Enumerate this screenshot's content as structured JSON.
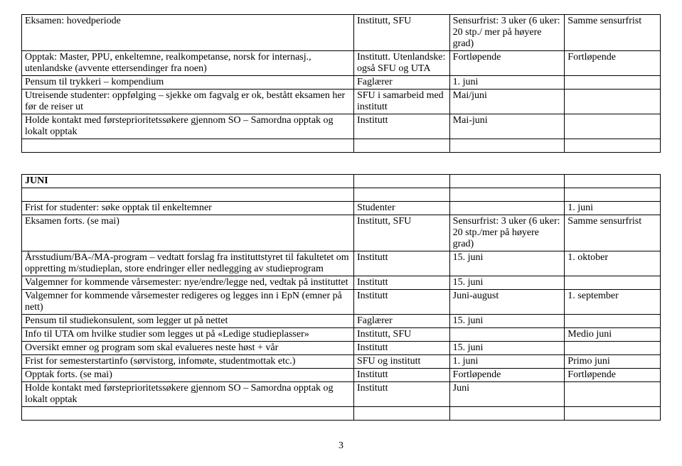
{
  "tableTop": {
    "rows": [
      {
        "c1": "Eksamen: hovedperiode",
        "c2": "Institutt, SFU",
        "c3": "Sensurfrist: 3 uker (6 uker: 20 stp./ mer på høyere grad)",
        "c4": "Samme sensurfrist"
      },
      {
        "c1": "Opptak: Master, PPU, enkeltemne, realkompetanse, norsk for internasj., utenlandske (avvente ettersendinger fra noen)",
        "c2": "Institutt. Utenlandske: også SFU og UTA",
        "c3": "Fortløpende",
        "c4": "Fortløpende"
      },
      {
        "c1": "Pensum til trykkeri – kompendium",
        "c2": "Faglærer",
        "c3": "1. juni",
        "c4": ""
      },
      {
        "c1": "Utreisende studenter: oppfølging – sjekke om fagvalg er ok, bestått eksamen her før de reiser ut",
        "c2": "SFU i samarbeid med institutt",
        "c3": "Mai/juni",
        "c4": ""
      },
      {
        "c1": "Holde kontakt med førsteprioritetssøkere gjennom SO – Samordna opptak og lokalt opptak",
        "c2": "Institutt",
        "c3": "Mai-juni",
        "c4": ""
      },
      {
        "c1": "",
        "c2": "",
        "c3": "",
        "c4": ""
      }
    ]
  },
  "sectionHeader": "JUNI",
  "tableBottom": {
    "rows": [
      {
        "c1": "Frist for studenter: søke opptak til enkeltemner",
        "c2": "Studenter",
        "c3": "",
        "c4": "1. juni"
      },
      {
        "c1": "Eksamen forts. (se mai)",
        "c2": "Institutt, SFU",
        "c3": "Sensurfrist: 3 uker (6 uker: 20 stp./mer på høyere grad)",
        "c4": "Samme sensurfrist"
      },
      {
        "c1": "Årsstudium/BA-/MA-program – vedtatt forslag fra instituttstyret til fakultetet om oppretting m/studieplan, store endringer eller nedlegging av studieprogram",
        "c2": "Institutt",
        "c3": "15. juni",
        "c4": "1. oktober"
      },
      {
        "c1": "Valgemner for kommende vårsemester: nye/endre/legge ned, vedtak på instituttet",
        "c2": "Institutt",
        "c3": "15. juni",
        "c4": ""
      },
      {
        "c1": "Valgemner for kommende vårsemester redigeres og legges inn i EpN (emner på nett)",
        "c2": "Institutt",
        "c3": "Juni-august",
        "c4": "1. september"
      },
      {
        "c1": "Pensum til studiekonsulent, som legger ut på nettet",
        "c2": "Faglærer",
        "c3": "15. juni",
        "c4": ""
      },
      {
        "c1": "Info til UTA om hvilke studier som legges ut på «Ledige studieplasser»",
        "c2": "Institutt, SFU",
        "c3": "",
        "c4": "Medio juni"
      },
      {
        "c1": "Oversikt emner og program som skal evalueres neste høst + vår",
        "c2": "Institutt",
        "c3": "15. juni",
        "c4": ""
      },
      {
        "c1": "Frist for semesterstartinfo (sørvistorg, infomøte, studentmottak etc.)",
        "c2": "SFU og institutt",
        "c3": "1. juni",
        "c4": "Primo juni"
      },
      {
        "c1": "Opptak forts. (se mai)",
        "c2": "Institutt",
        "c3": "Fortløpende",
        "c4": "Fortløpende"
      },
      {
        "c1": "Holde kontakt med førsteprioritetssøkere gjennom SO – Samordna opptak og lokalt opptak",
        "c2": "Institutt",
        "c3": "Juni",
        "c4": ""
      },
      {
        "c1": "",
        "c2": "",
        "c3": "",
        "c4": ""
      }
    ]
  },
  "pageNumber": "3"
}
